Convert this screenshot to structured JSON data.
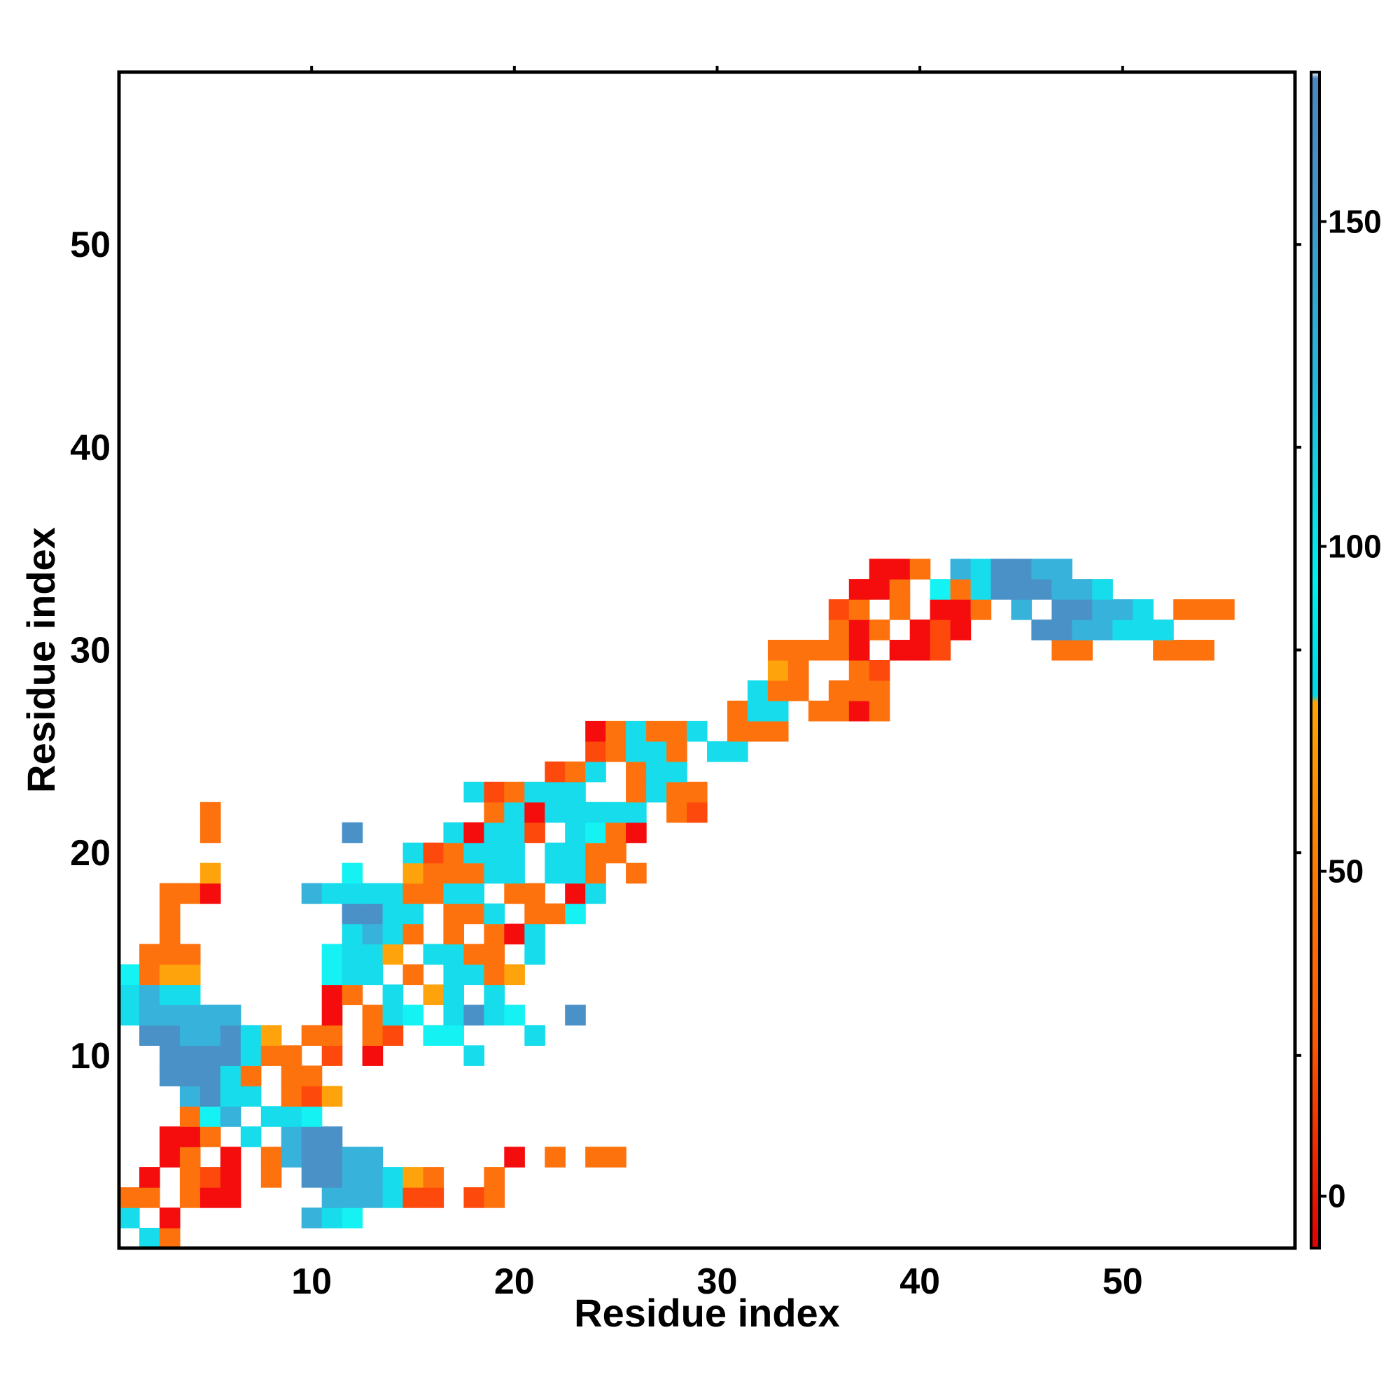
{
  "chart_data": {
    "type": "heatmap",
    "title": "",
    "xlabel": "Residue index",
    "ylabel": "Residue index",
    "xlim": [
      0.5,
      58.5
    ],
    "ylim": [
      0.5,
      58.5
    ],
    "x_ticks": [
      10,
      20,
      30,
      40,
      50
    ],
    "y_ticks": [
      10,
      20,
      30,
      40,
      50
    ],
    "grid": false,
    "colorbar": {
      "range": [
        -8,
        172
      ],
      "ticks": [
        0,
        50,
        100,
        150
      ],
      "stops": [
        {
          "value": -8,
          "color": "#e10000"
        },
        {
          "value": 25,
          "color": "#ff5a00"
        },
        {
          "value": 50,
          "color": "#ff7a00"
        },
        {
          "value": 76,
          "color": "#ffa500"
        },
        {
          "value": 77,
          "color": "#00d8e8"
        },
        {
          "value": 95,
          "color": "#00eeee"
        },
        {
          "value": 125,
          "color": "#22b8dd"
        },
        {
          "value": 150,
          "color": "#3f97cc"
        },
        {
          "value": 172,
          "color": "#4a86c0"
        },
        {
          "value": 173,
          "color": "#ffffff"
        }
      ]
    },
    "palette": {
      "R": "#f50c0c",
      "D": "#fd4a0c",
      "O": "#fe720d",
      "A": "#ffa30c",
      "C": "#16dceb",
      "Q": "#14f2f4",
      "S": "#36b2db",
      "B": "#4a91c7"
    },
    "legend_codes": {
      "R": 5,
      "D": 25,
      "O": 45,
      "A": 70,
      "C": 105,
      "Q": 95,
      "S": 130,
      "B": 155
    },
    "cells": [
      {
        "y": 1,
        "row": "-CO-----------------------------------------------------------"
      },
      {
        "y": 2,
        "row": "C-R------SCQ------------------------------------------------"
      },
      {
        "y": 3,
        "row": "OO-ORR----SSSCDD-DO--------------------------------------------"
      },
      {
        "y": 4,
        "row": "-R-ODR-O-BBSSCAO--O-------------------------------------------"
      },
      {
        "y": 5,
        "row": "--RO-R-OSBBSS------R-O-OO-------------------------------------"
      },
      {
        "y": 6,
        "row": "--RRO-C-SBB--------------------------------------------------"
      },
      {
        "y": 7,
        "row": "---OQS-CCQ---------------------------------------------------"
      },
      {
        "y": 8,
        "row": "---SBCC-ODA-------------------------------------------------"
      },
      {
        "y": 9,
        "row": "--BBBCO-OO---------------------------------------------------"
      },
      {
        "y": 10,
        "row": "--BBBBCOO-D-R----C----------------------------------------"
      },
      {
        "y": 11,
        "row": "-BBSSBCA-OO-OD-QQ---C----------------------------------------"
      },
      {
        "y": 12,
        "row": "CSSSSS----R-OCQ-CBCQ--B----------------------------------------"
      },
      {
        "y": 13,
        "row": "CSCC------RO-C-AC-C------------------------------------------"
      },
      {
        "y": 14,
        "row": "QOAA------QCC-O-CCOA---------------------------------------------"
      },
      {
        "y": 15,
        "row": "-OOO------QCCA-CCOO-C----------------------------------------"
      },
      {
        "y": 16,
        "row": "--O--------CSCO-O-ORC-------------------------------------------"
      },
      {
        "y": 17,
        "row": "--O--------BBCC-OOC-OOQ------------------------------------------"
      },
      {
        "y": 18,
        "row": "--OOR----SCCCCOOCC-OO-RC-----------------------------------------"
      },
      {
        "y": 19,
        "row": "----A------Q--AOOOCC-CCO-O---------------------------------------"
      },
      {
        "y": 20,
        "row": "--------------CDOCCC-CCOO-------------------------------------"
      },
      {
        "y": 21,
        "row": "----O------B----CRCCD-CQOR------------------------------------"
      },
      {
        "y": 22,
        "row": "----O-------------OCRCCCCC-OD-----------------------------------"
      },
      {
        "y": 23,
        "row": "-----------------CDOCCC--OCOO------------------------------------"
      },
      {
        "y": 24,
        "row": "---------------------DOC-OCC---------------------------------------"
      },
      {
        "y": 25,
        "row": "-----------------------DOCCO-CC---------------------------------"
      },
      {
        "y": 26,
        "row": "-----------------------ROCOOC-OOO--------------------------------"
      },
      {
        "y": 27,
        "row": "------------------------------OCC-OORO----------------------------"
      },
      {
        "y": 28,
        "row": "-------------------------------COO-OOO----------------------------"
      },
      {
        "y": 29,
        "row": "--------------------------------AO--OD---------------------CCC-O-"
      },
      {
        "y": 30,
        "row": "--------------------------------OOOOR-RRD-----OO---OOO-------------"
      },
      {
        "y": 31,
        "row": "-----------------------------------ORO-RDR---BBSSCCC------------------"
      },
      {
        "y": 32,
        "row": "-----------------------------------DO-O-RRO-S-BBSSC-OOO---A-------------"
      },
      {
        "y": 33,
        "row": "------------------------------------RRO-QOCBBBSSC----------R-----------"
      },
      {
        "y": 34,
        "row": "-------------------------------------RRO-SCBBSS-------------------------------"
      },
      {
        "y": 35,
        "row": "-------------------------------------------------------------------------------"
      },
      {
        "y": 36,
        "row": "-------------------------------------------------------------------------------"
      }
    ]
  }
}
